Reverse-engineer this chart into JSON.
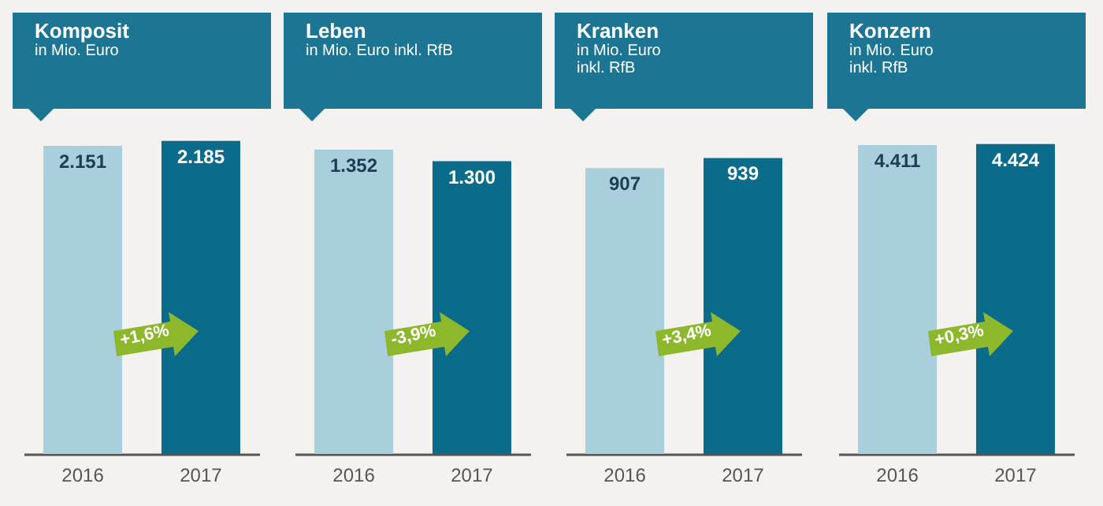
{
  "chart_data": [
    {
      "type": "bar",
      "title": "Komposit",
      "subtitle": "in Mio. Euro",
      "categories": [
        "2016",
        "2017"
      ],
      "values": [
        2151,
        2185
      ],
      "colors": [
        "#a9cfdc",
        "#0b6b8b"
      ],
      "value_labels": [
        "2.151",
        "2.185"
      ],
      "annotations": [
        "+1,6%"
      ]
    },
    {
      "type": "bar",
      "title": "Leben",
      "subtitle": "in Mio. Euro inkl. RfB",
      "categories": [
        "2016",
        "2017"
      ],
      "values": [
        1352,
        1300
      ],
      "colors": [
        "#a9cfdc",
        "#0b6b8b"
      ],
      "value_labels": [
        "1.352",
        "1.300"
      ],
      "annotations": [
        "-3,9%"
      ]
    },
    {
      "type": "bar",
      "title": "Kranken",
      "subtitle": "in Mio. Euro\ninkl. RfB",
      "categories": [
        "2016",
        "2017"
      ],
      "values": [
        907,
        939
      ],
      "colors": [
        "#a9cfdc",
        "#0b6b8b"
      ],
      "value_labels": [
        "907",
        "939"
      ],
      "annotations": [
        "+3,4%"
      ]
    },
    {
      "type": "bar",
      "title": "Konzern",
      "subtitle": "in Mio. Euro\ninkl. RfB",
      "categories": [
        "2016",
        "2017"
      ],
      "values": [
        4411,
        4424
      ],
      "colors": [
        "#a9cfdc",
        "#0b6b8b"
      ],
      "value_labels": [
        "4.411",
        "4.424"
      ],
      "annotations": [
        "+0,3%"
      ]
    }
  ]
}
